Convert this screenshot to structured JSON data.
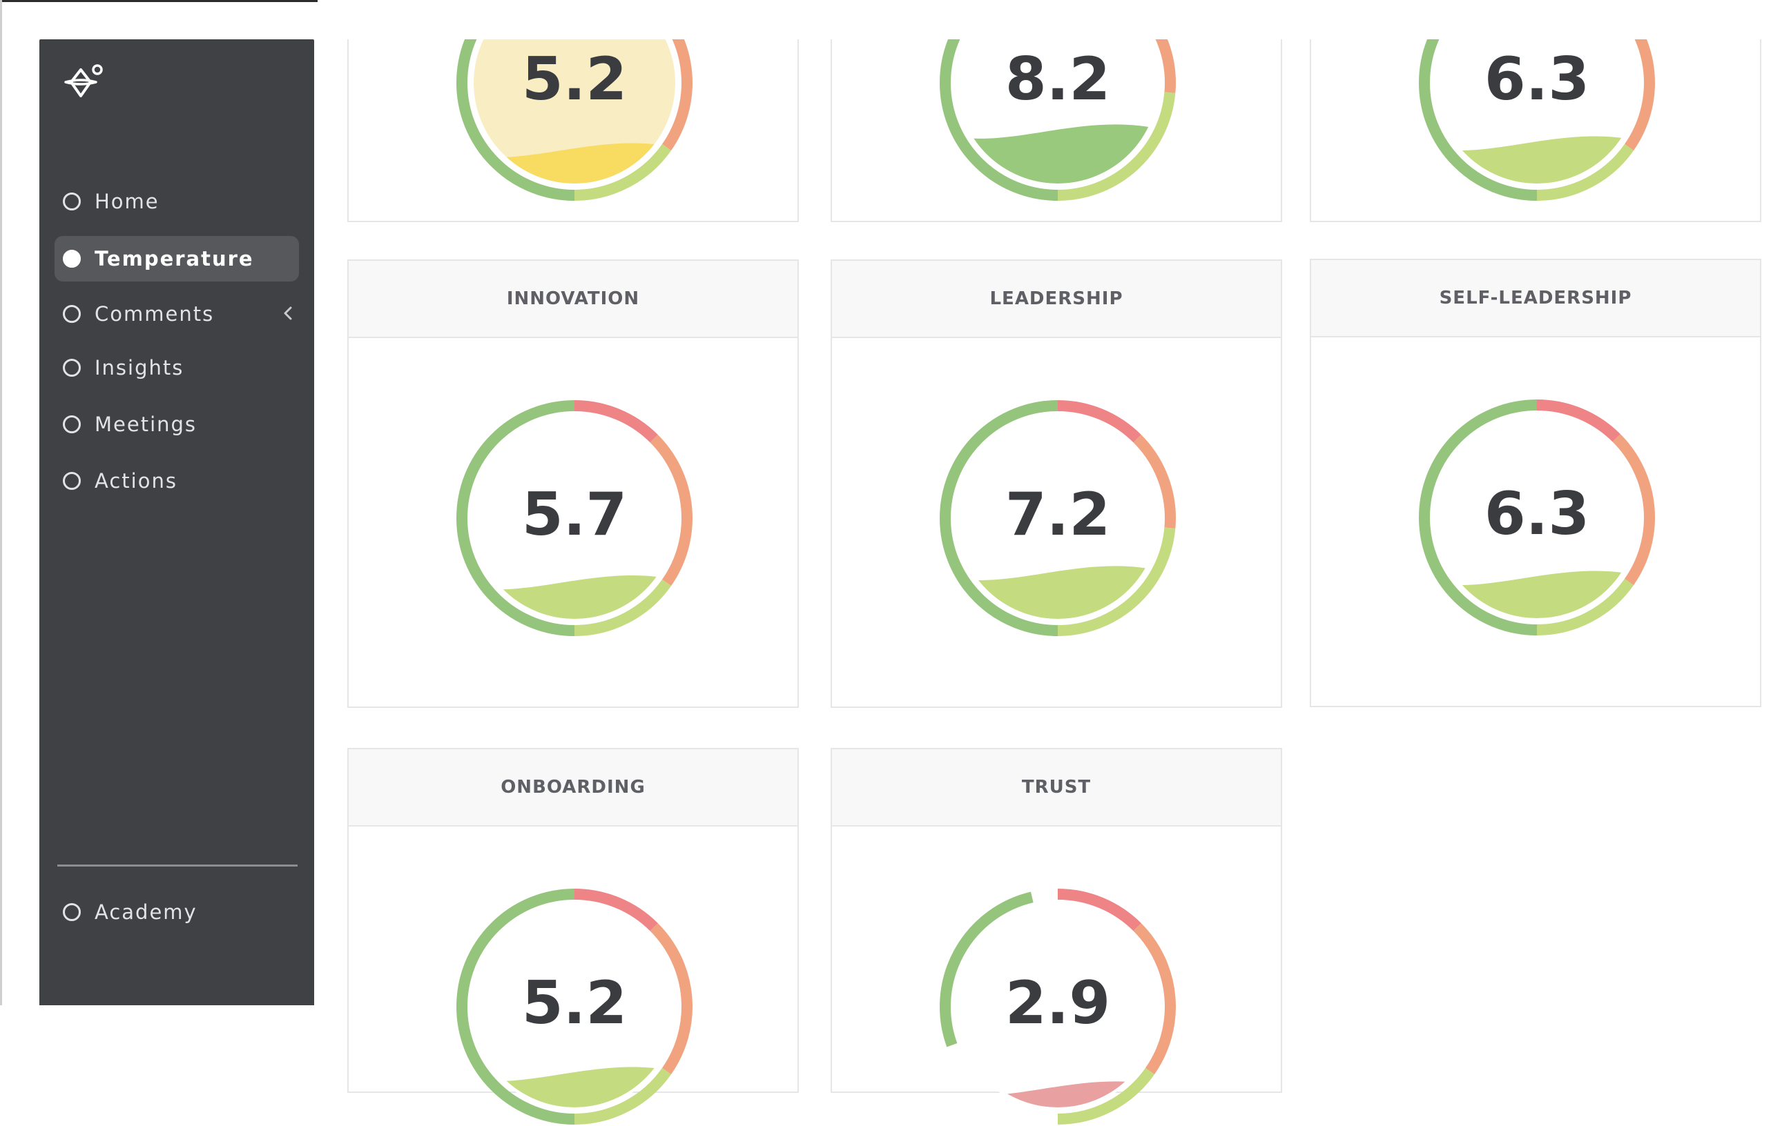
{
  "sidebar": {
    "logo_icon": "sparkle-logo-icon",
    "items": [
      {
        "label": "Home",
        "icon": "ring-icon",
        "active": false
      },
      {
        "label": "Temperature",
        "icon": "ring-icon",
        "active": true
      },
      {
        "label": "Comments",
        "icon": "ring-icon",
        "active": false,
        "has_chevron": true
      },
      {
        "label": "Insights",
        "icon": "ring-icon",
        "active": false
      },
      {
        "label": "Meetings",
        "icon": "ring-icon",
        "active": false
      },
      {
        "label": "Actions",
        "icon": "ring-icon",
        "active": false
      }
    ],
    "footer_items": [
      {
        "label": "Academy",
        "icon": "ring-icon"
      }
    ]
  },
  "cards": [
    {
      "title": "",
      "value": "5.2",
      "score": 5.2,
      "fill_color": "#f8dc62",
      "fill_color_light": "#f9edc4"
    },
    {
      "title": "",
      "value": "8.2",
      "score": 8.2,
      "fill_color": "#98c97d"
    },
    {
      "title": "",
      "value": "6.3",
      "score": 6.3,
      "fill_color": "#c4db7f"
    },
    {
      "title": "INNOVATION",
      "value": "5.7",
      "score": 5.7,
      "fill_color": "#c4db7f"
    },
    {
      "title": "LEADERSHIP",
      "value": "7.2",
      "score": 7.2,
      "fill_color": "#c4db7f"
    },
    {
      "title": "SELF-LEADERSHIP",
      "value": "6.3",
      "score": 6.3,
      "fill_color": "#c4db7f"
    },
    {
      "title": "ONBOARDING",
      "value": "5.2",
      "score": 5.2,
      "fill_color": "#c4db7f"
    },
    {
      "title": "TRUST",
      "value": "2.9",
      "score": 2.9,
      "fill_color": "#e9a0a0"
    }
  ],
  "colors": {
    "sidebar_bg": "#404144",
    "active_item_bg": "#57585c",
    "ring_green": "#95c47c",
    "ring_lightgreen": "#c4db7f",
    "ring_red": "#ee8486",
    "ring_orange": "#f1a37f"
  }
}
